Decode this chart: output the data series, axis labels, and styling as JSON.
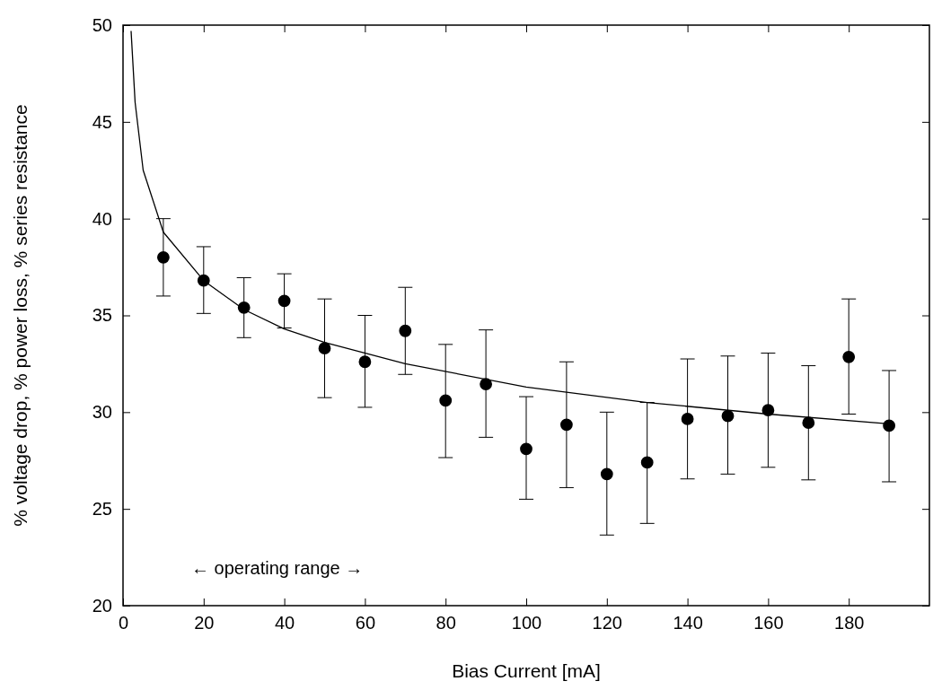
{
  "chart_data": {
    "type": "scatter",
    "xlabel": "Bias Current [mA]",
    "ylabel": "% voltage drop, % power loss, % series resistance",
    "xlim": [
      0,
      200
    ],
    "ylim": [
      20,
      50
    ],
    "xticks": [
      0,
      20,
      40,
      60,
      80,
      100,
      120,
      140,
      160,
      180
    ],
    "yticks": [
      20,
      25,
      30,
      35,
      40,
      45,
      50
    ],
    "grid": false,
    "annotations": [
      "← operating range →"
    ],
    "series": [
      {
        "color": "#000000",
        "marker": "circle",
        "x": [
          10,
          20,
          30,
          40,
          50,
          60,
          70,
          80,
          90,
          100,
          110,
          120,
          130,
          140,
          150,
          160,
          170,
          180,
          190
        ],
        "values": [
          38.0,
          36.8,
          35.4,
          35.75,
          33.3,
          32.6,
          34.2,
          30.6,
          31.45,
          28.1,
          29.35,
          26.8,
          27.4,
          29.65,
          29.8,
          30.1,
          29.45,
          32.85,
          29.3
        ],
        "errors": [
          [
            36.0,
            40.0
          ],
          [
            35.1,
            38.55
          ],
          [
            33.85,
            36.95
          ],
          [
            34.35,
            37.15
          ],
          [
            30.75,
            35.85
          ],
          [
            30.25,
            35.0
          ],
          [
            31.95,
            36.45
          ],
          [
            27.65,
            33.5
          ],
          [
            28.7,
            34.25
          ],
          [
            25.5,
            30.8
          ],
          [
            26.1,
            32.6
          ],
          [
            23.65,
            30.0
          ],
          [
            24.25,
            30.5
          ],
          [
            26.55,
            32.75
          ],
          [
            26.8,
            32.9
          ],
          [
            27.15,
            33.05
          ],
          [
            26.5,
            32.4
          ],
          [
            29.9,
            35.85
          ],
          [
            26.4,
            32.15
          ]
        ]
      },
      {
        "type": "line",
        "color": "#000000",
        "line_style": "solid",
        "x": [
          2,
          3,
          5,
          10,
          20,
          30,
          40,
          50,
          70,
          100,
          130,
          160,
          190
        ],
        "values": [
          49.7,
          46,
          42.5,
          39.3,
          36.8,
          35.3,
          34.3,
          33.6,
          32.5,
          31.3,
          30.5,
          29.9,
          29.4
        ]
      }
    ]
  }
}
